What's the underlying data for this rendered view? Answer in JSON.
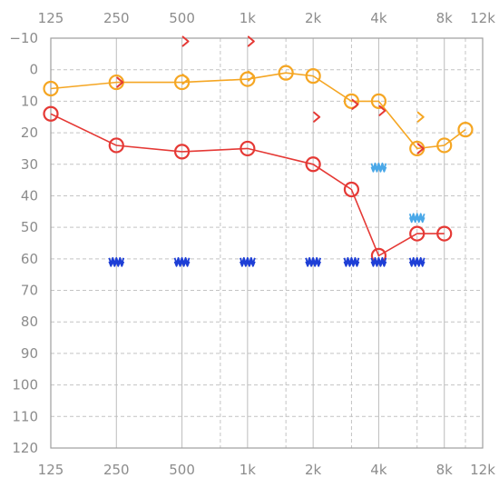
{
  "chart_data": {
    "type": "line",
    "title": "",
    "xlabel": "",
    "ylabel": "",
    "x_scale": "log",
    "y_inverted": true,
    "ylim": [
      -10,
      120
    ],
    "xlim": [
      125,
      12000
    ],
    "grid": true,
    "x_ticks": [
      {
        "value": 125,
        "label": "125"
      },
      {
        "value": 250,
        "label": "250"
      },
      {
        "value": 500,
        "label": "500"
      },
      {
        "value": 1000,
        "label": "1k"
      },
      {
        "value": 2000,
        "label": "2k"
      },
      {
        "value": 4000,
        "label": "4k"
      },
      {
        "value": 8000,
        "label": "8k"
      },
      {
        "value": 12000,
        "label": "12k"
      }
    ],
    "x_minor_gridlines": [
      750,
      1500,
      3000,
      6000,
      10000
    ],
    "y_ticks": [
      {
        "value": -10,
        "label": "−10"
      },
      {
        "value": 0,
        "label": "0"
      },
      {
        "value": 10,
        "label": "10"
      },
      {
        "value": 20,
        "label": "20"
      },
      {
        "value": 30,
        "label": "30"
      },
      {
        "value": 40,
        "label": "40"
      },
      {
        "value": 50,
        "label": "50"
      },
      {
        "value": 60,
        "label": "60"
      },
      {
        "value": 70,
        "label": "70"
      },
      {
        "value": 80,
        "label": "80"
      },
      {
        "value": 90,
        "label": "90"
      },
      {
        "value": 100,
        "label": "100"
      },
      {
        "value": 110,
        "label": "110"
      },
      {
        "value": 120,
        "label": "120"
      }
    ],
    "series": [
      {
        "marker": "circle",
        "color": "#f5a623",
        "points": [
          {
            "x": 125,
            "y": 6
          },
          {
            "x": 250,
            "y": 4
          },
          {
            "x": 500,
            "y": 4
          },
          {
            "x": 1000,
            "y": 3
          },
          {
            "x": 1500,
            "y": 1
          },
          {
            "x": 2000,
            "y": 2
          },
          {
            "x": 3000,
            "y": 10
          },
          {
            "x": 4000,
            "y": 10
          },
          {
            "x": 6000,
            "y": 25
          },
          {
            "x": 8000,
            "y": 24
          },
          {
            "x": 10000,
            "y": 19
          }
        ]
      },
      {
        "marker": "circle",
        "color": "#e53935",
        "points": [
          {
            "x": 125,
            "y": 14
          },
          {
            "x": 250,
            "y": 24
          },
          {
            "x": 500,
            "y": 26
          },
          {
            "x": 1000,
            "y": 25
          },
          {
            "x": 2000,
            "y": 30
          },
          {
            "x": 3000,
            "y": 38
          },
          {
            "x": 4000,
            "y": 59
          },
          {
            "x": 6000,
            "y": 52
          },
          {
            "x": 8000,
            "y": 52
          }
        ]
      }
    ],
    "marker_sets": [
      {
        "marker": "chevron-right",
        "color": "#e53935",
        "connected": false,
        "points": [
          {
            "x": 250,
            "y": 4
          },
          {
            "x": 500,
            "y": -9
          },
          {
            "x": 1000,
            "y": -9
          },
          {
            "x": 2000,
            "y": 15
          },
          {
            "x": 3000,
            "y": 11
          },
          {
            "x": 4000,
            "y": 13
          },
          {
            "x": 6000,
            "y": 25
          }
        ]
      },
      {
        "marker": "chevron-right",
        "color": "#f5a623",
        "connected": false,
        "points": [
          {
            "x": 500,
            "y": 3
          },
          {
            "x": 1000,
            "y": 2
          },
          {
            "x": 6000,
            "y": 15
          }
        ]
      },
      {
        "marker": "narrow-band-noise",
        "color": "#1e3fd6",
        "connected": false,
        "points": [
          {
            "x": 250,
            "y": 60
          },
          {
            "x": 500,
            "y": 60
          },
          {
            "x": 1000,
            "y": 60
          },
          {
            "x": 2000,
            "y": 60
          },
          {
            "x": 3000,
            "y": 60
          },
          {
            "x": 4000,
            "y": 60
          },
          {
            "x": 6000,
            "y": 60
          }
        ]
      },
      {
        "marker": "narrow-band-noise",
        "color": "#4aa8e8",
        "connected": false,
        "points": [
          {
            "x": 4000,
            "y": 30
          },
          {
            "x": 6000,
            "y": 46
          }
        ]
      }
    ]
  }
}
